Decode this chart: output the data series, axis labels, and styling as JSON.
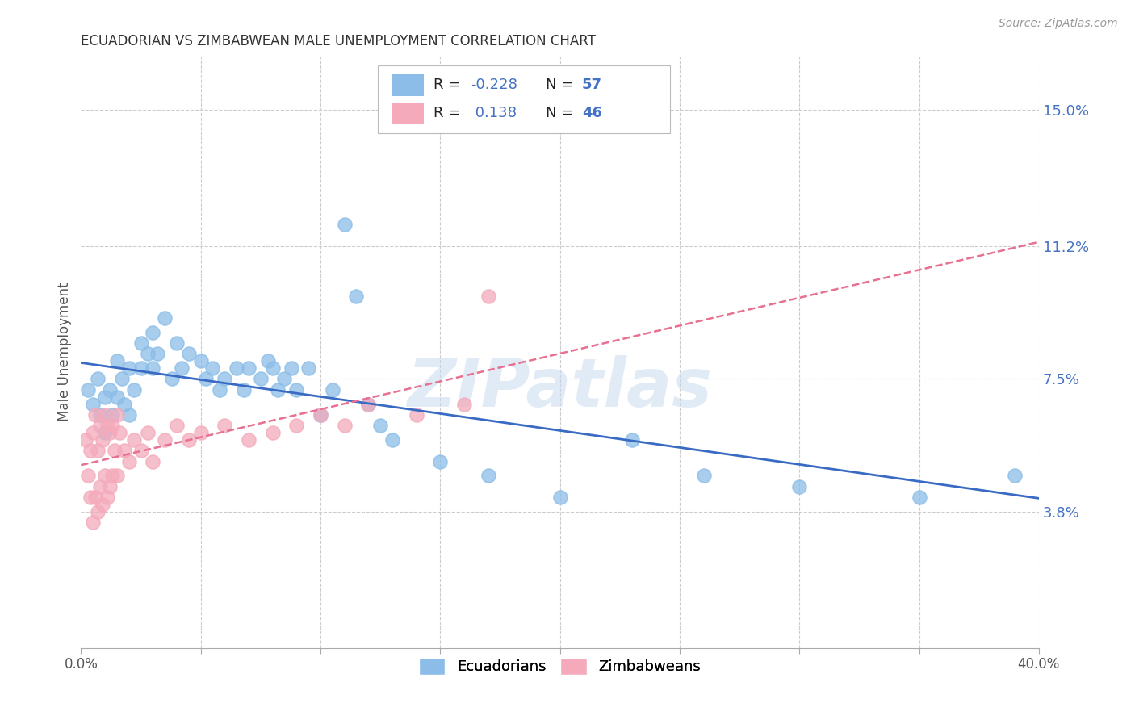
{
  "title": "ECUADORIAN VS ZIMBABWEAN MALE UNEMPLOYMENT CORRELATION CHART",
  "source": "Source: ZipAtlas.com",
  "ylabel": "Male Unemployment",
  "yticks_labels": [
    "3.8%",
    "7.5%",
    "11.2%",
    "15.0%"
  ],
  "yticks_values": [
    0.038,
    0.075,
    0.112,
    0.15
  ],
  "xmin": 0.0,
  "xmax": 0.4,
  "ymin": 0.0,
  "ymax": 0.165,
  "ecuadorian_color": "#8BBDE8",
  "zimbabwean_color": "#F4AABB",
  "trendline_blue": "#3A6BC4",
  "trendline_pink": "#E87090",
  "watermark": "ZIPatlas",
  "watermark_color": "#C5D8EE",
  "ecuadorian_R": -0.228,
  "ecuadorian_N": 57,
  "zimbabwean_R": 0.138,
  "zimbabwean_N": 46,
  "ecuadorian_x": [
    0.003,
    0.005,
    0.007,
    0.008,
    0.01,
    0.01,
    0.012,
    0.013,
    0.015,
    0.015,
    0.017,
    0.018,
    0.02,
    0.02,
    0.022,
    0.025,
    0.025,
    0.028,
    0.03,
    0.03,
    0.032,
    0.035,
    0.038,
    0.04,
    0.042,
    0.045,
    0.05,
    0.052,
    0.055,
    0.058,
    0.06,
    0.065,
    0.068,
    0.07,
    0.075,
    0.078,
    0.08,
    0.082,
    0.085,
    0.088,
    0.09,
    0.095,
    0.1,
    0.105,
    0.11,
    0.115,
    0.12,
    0.125,
    0.13,
    0.15,
    0.17,
    0.2,
    0.23,
    0.26,
    0.3,
    0.35,
    0.39
  ],
  "ecuadorian_y": [
    0.072,
    0.068,
    0.075,
    0.065,
    0.07,
    0.06,
    0.072,
    0.065,
    0.08,
    0.07,
    0.075,
    0.068,
    0.078,
    0.065,
    0.072,
    0.085,
    0.078,
    0.082,
    0.088,
    0.078,
    0.082,
    0.092,
    0.075,
    0.085,
    0.078,
    0.082,
    0.08,
    0.075,
    0.078,
    0.072,
    0.075,
    0.078,
    0.072,
    0.078,
    0.075,
    0.08,
    0.078,
    0.072,
    0.075,
    0.078,
    0.072,
    0.078,
    0.065,
    0.072,
    0.118,
    0.098,
    0.068,
    0.062,
    0.058,
    0.052,
    0.048,
    0.042,
    0.058,
    0.048,
    0.045,
    0.042,
    0.048
  ],
  "zimbabwean_x": [
    0.002,
    0.003,
    0.004,
    0.004,
    0.005,
    0.005,
    0.006,
    0.006,
    0.007,
    0.007,
    0.008,
    0.008,
    0.009,
    0.009,
    0.01,
    0.01,
    0.011,
    0.011,
    0.012,
    0.012,
    0.013,
    0.013,
    0.014,
    0.015,
    0.015,
    0.016,
    0.018,
    0.02,
    0.022,
    0.025,
    0.028,
    0.03,
    0.035,
    0.04,
    0.045,
    0.05,
    0.06,
    0.07,
    0.08,
    0.09,
    0.1,
    0.11,
    0.12,
    0.14,
    0.16,
    0.17
  ],
  "zimbabwean_y": [
    0.058,
    0.048,
    0.055,
    0.042,
    0.06,
    0.035,
    0.065,
    0.042,
    0.055,
    0.038,
    0.062,
    0.045,
    0.058,
    0.04,
    0.065,
    0.048,
    0.062,
    0.042,
    0.06,
    0.045,
    0.062,
    0.048,
    0.055,
    0.065,
    0.048,
    0.06,
    0.055,
    0.052,
    0.058,
    0.055,
    0.06,
    0.052,
    0.058,
    0.062,
    0.058,
    0.06,
    0.062,
    0.058,
    0.06,
    0.062,
    0.065,
    0.062,
    0.068,
    0.065,
    0.068,
    0.098
  ]
}
